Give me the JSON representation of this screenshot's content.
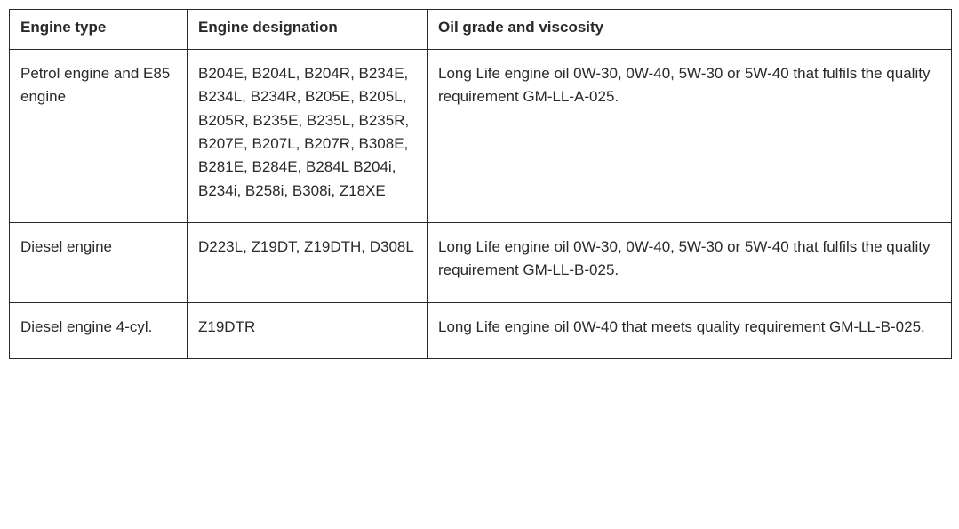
{
  "table": {
    "headers": {
      "engine_type": "Engine type",
      "engine_designation": "Engine designation",
      "oil_grade": "Oil grade and viscosity"
    },
    "rows": [
      {
        "engine_type": "Petrol engine and E85 engine",
        "engine_designation": "B204E, B204L, B204R, B234E, B234L, B234R, B205E, B205L, B205R, B235E, B235L, B235R, B207E, B207L, B207R, B308E, B281E, B284E, B284L B204i, B234i, B258i, B308i, Z18XE",
        "oil_grade": "Long Life engine oil 0W-30, 0W-40, 5W-30 or 5W-40 that fulfils the quality requirement GM-LL-A-025."
      },
      {
        "engine_type": "Diesel engine",
        "engine_designation": "D223L, Z19DT, Z19DTH, D308L",
        "oil_grade": "Long Life engine oil 0W-30, 0W-40, 5W-30 or 5W-40 that fulfils the quality requirement GM-LL-B-025."
      },
      {
        "engine_type": "Diesel engine 4-cyl.",
        "engine_designation": "Z19DTR",
        "oil_grade": "Long Life engine oil 0W-40 that meets quality requirement GM-LL-B-025."
      }
    ]
  }
}
